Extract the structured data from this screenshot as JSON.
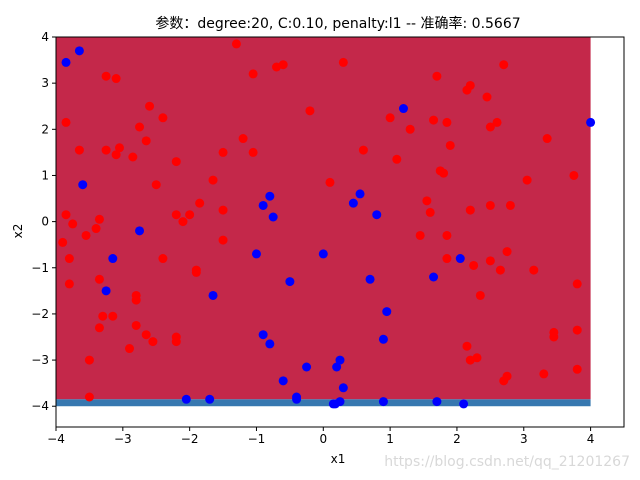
{
  "chart_data": {
    "type": "scatter",
    "title": "参数：degree:20, C:0.10, penalty:l1 -- 准确率: 0.5667",
    "xlabel": "x1",
    "ylabel": "x2",
    "xlim": [
      -4,
      4.5
    ],
    "ylim": [
      -4.45,
      4
    ],
    "xticks": [
      -4,
      -3,
      -2,
      -1,
      0,
      1,
      2,
      3,
      4
    ],
    "yticks": [
      -4,
      -3,
      -2,
      -1,
      0,
      1,
      2,
      3,
      4
    ],
    "grid": false,
    "regions": [
      {
        "class": "red",
        "color": "#c4284a",
        "x": [
          -4,
          4
        ],
        "y": [
          -3.85,
          4
        ]
      },
      {
        "class": "blue",
        "color": "#3778b0",
        "x": [
          -4,
          4
        ],
        "y": [
          -4,
          -3.85
        ]
      }
    ],
    "series": [
      {
        "color": "#ff0000",
        "points": [
          [
            -3.85,
            2.15
          ],
          [
            -3.65,
            1.55
          ],
          [
            -3.55,
            -0.3
          ],
          [
            -3.9,
            -0.45
          ],
          [
            -3.8,
            -0.8
          ],
          [
            -3.8,
            -1.35
          ],
          [
            -3.5,
            -3.0
          ],
          [
            -3.5,
            -3.8
          ],
          [
            -3.85,
            0.15
          ],
          [
            -3.75,
            -0.05
          ],
          [
            -3.25,
            3.15
          ],
          [
            -3.1,
            3.1
          ],
          [
            -3.1,
            1.45
          ],
          [
            -3.25,
            1.55
          ],
          [
            -3.05,
            1.6
          ],
          [
            -2.85,
            1.4
          ],
          [
            -2.75,
            2.05
          ],
          [
            -2.6,
            2.5
          ],
          [
            -2.65,
            1.75
          ],
          [
            -2.4,
            2.25
          ],
          [
            -2.5,
            0.8
          ],
          [
            -2.4,
            -0.8
          ],
          [
            -3.35,
            0.05
          ],
          [
            -3.4,
            -0.15
          ],
          [
            -3.35,
            -1.25
          ],
          [
            -3.3,
            -2.05
          ],
          [
            -3.15,
            -2.05
          ],
          [
            -3.35,
            -2.3
          ],
          [
            -2.9,
            -2.75
          ],
          [
            -2.8,
            -1.6
          ],
          [
            -2.8,
            -1.7
          ],
          [
            -2.8,
            -2.25
          ],
          [
            -2.65,
            -2.45
          ],
          [
            -2.55,
            -2.6
          ],
          [
            -2.2,
            -2.5
          ],
          [
            -2.2,
            -2.6
          ],
          [
            -2.2,
            1.3
          ],
          [
            -2.2,
            0.15
          ],
          [
            -2.1,
            0.0
          ],
          [
            -2.0,
            0.15
          ],
          [
            -1.85,
            0.4
          ],
          [
            -1.9,
            -1.05
          ],
          [
            -1.9,
            -1.1
          ],
          [
            -1.65,
            0.9
          ],
          [
            -1.5,
            1.5
          ],
          [
            -1.5,
            0.25
          ],
          [
            -1.5,
            -0.4
          ],
          [
            -1.3,
            3.85
          ],
          [
            -1.2,
            1.8
          ],
          [
            -1.05,
            3.2
          ],
          [
            -1.05,
            1.5
          ],
          [
            -0.7,
            3.35
          ],
          [
            -0.6,
            3.4
          ],
          [
            -0.2,
            2.4
          ],
          [
            0.1,
            0.85
          ],
          [
            0.3,
            3.45
          ],
          [
            0.6,
            1.55
          ],
          [
            1.0,
            2.25
          ],
          [
            1.1,
            1.35
          ],
          [
            1.3,
            2.0
          ],
          [
            1.45,
            -0.3
          ],
          [
            1.55,
            0.45
          ],
          [
            1.6,
            0.2
          ],
          [
            1.65,
            2.2
          ],
          [
            1.7,
            3.15
          ],
          [
            1.75,
            1.1
          ],
          [
            1.8,
            1.05
          ],
          [
            1.85,
            2.15
          ],
          [
            1.85,
            -0.3
          ],
          [
            1.9,
            1.65
          ],
          [
            1.85,
            -0.8
          ],
          [
            2.15,
            2.85
          ],
          [
            2.2,
            2.95
          ],
          [
            2.2,
            0.25
          ],
          [
            2.25,
            -0.95
          ],
          [
            2.15,
            -2.7
          ],
          [
            2.2,
            -3.0
          ],
          [
            2.3,
            -2.95
          ],
          [
            2.35,
            -1.6
          ],
          [
            2.45,
            2.7
          ],
          [
            2.5,
            2.05
          ],
          [
            2.5,
            0.35
          ],
          [
            2.5,
            -0.85
          ],
          [
            2.6,
            2.15
          ],
          [
            2.7,
            3.4
          ],
          [
            2.65,
            -1.05
          ],
          [
            2.75,
            -0.65
          ],
          [
            2.8,
            0.35
          ],
          [
            2.7,
            -3.45
          ],
          [
            2.75,
            -3.35
          ],
          [
            3.05,
            0.9
          ],
          [
            3.15,
            -1.05
          ],
          [
            3.35,
            1.8
          ],
          [
            3.45,
            -2.4
          ],
          [
            3.45,
            -2.5
          ],
          [
            3.3,
            -3.3
          ],
          [
            3.75,
            1.0
          ],
          [
            3.8,
            -1.35
          ],
          [
            3.8,
            -2.35
          ],
          [
            3.8,
            -3.2
          ]
        ]
      },
      {
        "color": "#0000ff",
        "points": [
          [
            -3.85,
            3.45
          ],
          [
            -3.65,
            3.7
          ],
          [
            -3.6,
            0.8
          ],
          [
            -3.15,
            -0.8
          ],
          [
            -3.25,
            -1.5
          ],
          [
            -2.75,
            -0.2
          ],
          [
            -1.65,
            -1.6
          ],
          [
            -1.7,
            -3.85
          ],
          [
            -2.05,
            -3.85
          ],
          [
            -1.0,
            -0.7
          ],
          [
            -0.9,
            0.35
          ],
          [
            -0.8,
            0.55
          ],
          [
            -0.75,
            0.1
          ],
          [
            -0.9,
            -2.45
          ],
          [
            -0.8,
            -2.65
          ],
          [
            -0.6,
            -3.45
          ],
          [
            -0.5,
            -1.3
          ],
          [
            -0.4,
            -3.8
          ],
          [
            -0.4,
            -3.85
          ],
          [
            -0.25,
            -3.15
          ],
          [
            0.0,
            -0.7
          ],
          [
            0.15,
            -3.95
          ],
          [
            0.18,
            -3.95
          ],
          [
            0.2,
            -3.15
          ],
          [
            0.25,
            -3.9
          ],
          [
            0.25,
            -3.0
          ],
          [
            0.3,
            -3.6
          ],
          [
            0.45,
            0.4
          ],
          [
            0.55,
            0.6
          ],
          [
            0.7,
            -1.25
          ],
          [
            0.8,
            0.15
          ],
          [
            0.9,
            -2.55
          ],
          [
            0.95,
            -1.95
          ],
          [
            0.9,
            -3.9
          ],
          [
            1.2,
            2.45
          ],
          [
            1.65,
            -1.2
          ],
          [
            1.7,
            -3.9
          ],
          [
            2.05,
            -0.8
          ],
          [
            2.1,
            -3.95
          ],
          [
            4.0,
            2.15
          ]
        ]
      }
    ]
  },
  "watermark": "https://blog.csdn.net/qq_21201267"
}
